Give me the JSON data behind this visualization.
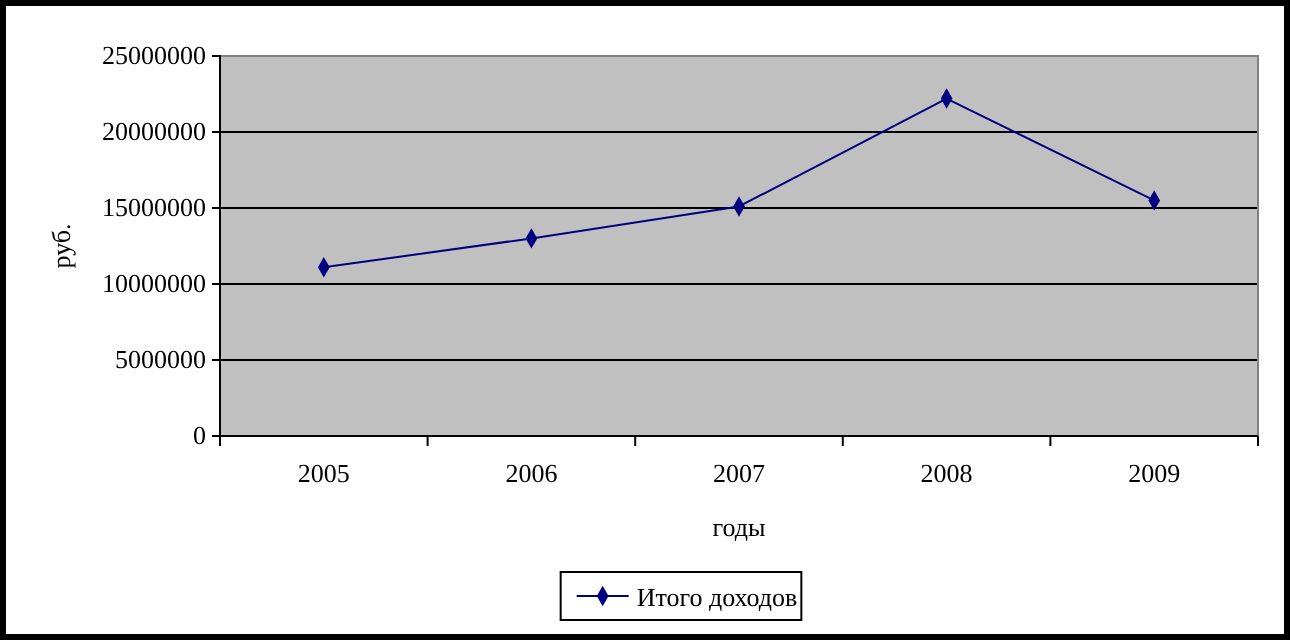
{
  "chart_data": {
    "type": "line",
    "xlabel": "годы",
    "ylabel": "руб.",
    "categories": [
      "2005",
      "2006",
      "2007",
      "2008",
      "2009"
    ],
    "series": [
      {
        "name": "Итого доходов",
        "color": "#000080",
        "values": [
          11100000,
          13000000,
          15100000,
          22200000,
          15500000
        ]
      }
    ],
    "ylim": [
      0,
      25000000
    ],
    "yticks": [
      0,
      5000000,
      10000000,
      15000000,
      20000000,
      25000000
    ],
    "grid": "y",
    "legend": "bottom",
    "marker": "diamond",
    "line_style": "solid"
  }
}
